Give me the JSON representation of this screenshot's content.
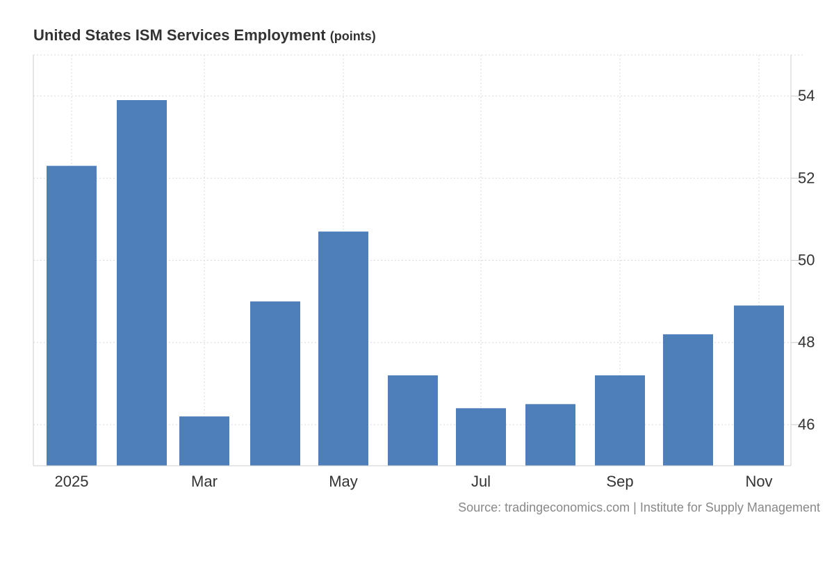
{
  "chart_data": {
    "type": "bar",
    "title": "United States ISM Services Employment",
    "unit": "(points)",
    "x_tick_labels": [
      "2025",
      "Mar",
      "May",
      "Jul",
      "Sep",
      "Nov"
    ],
    "categories": [
      "Jan 2025",
      "Feb 2025",
      "Mar 2025",
      "Apr 2025",
      "May 2025",
      "Jun 2025",
      "Jul 2025",
      "Aug 2025",
      "Sep 2025",
      "Oct 2025",
      "Nov 2025"
    ],
    "values": [
      52.3,
      53.9,
      46.2,
      49.0,
      50.7,
      47.2,
      46.4,
      46.5,
      47.2,
      48.2,
      48.9
    ],
    "y_ticks": [
      46,
      48,
      50,
      52,
      54
    ],
    "ylim": [
      45.0,
      55.0
    ],
    "y_axis_position": "right",
    "grid": true,
    "legend": "none",
    "bar_color": "#4e7fba",
    "source": "Source: tradingeconomics.com | Institute for Supply Management"
  }
}
